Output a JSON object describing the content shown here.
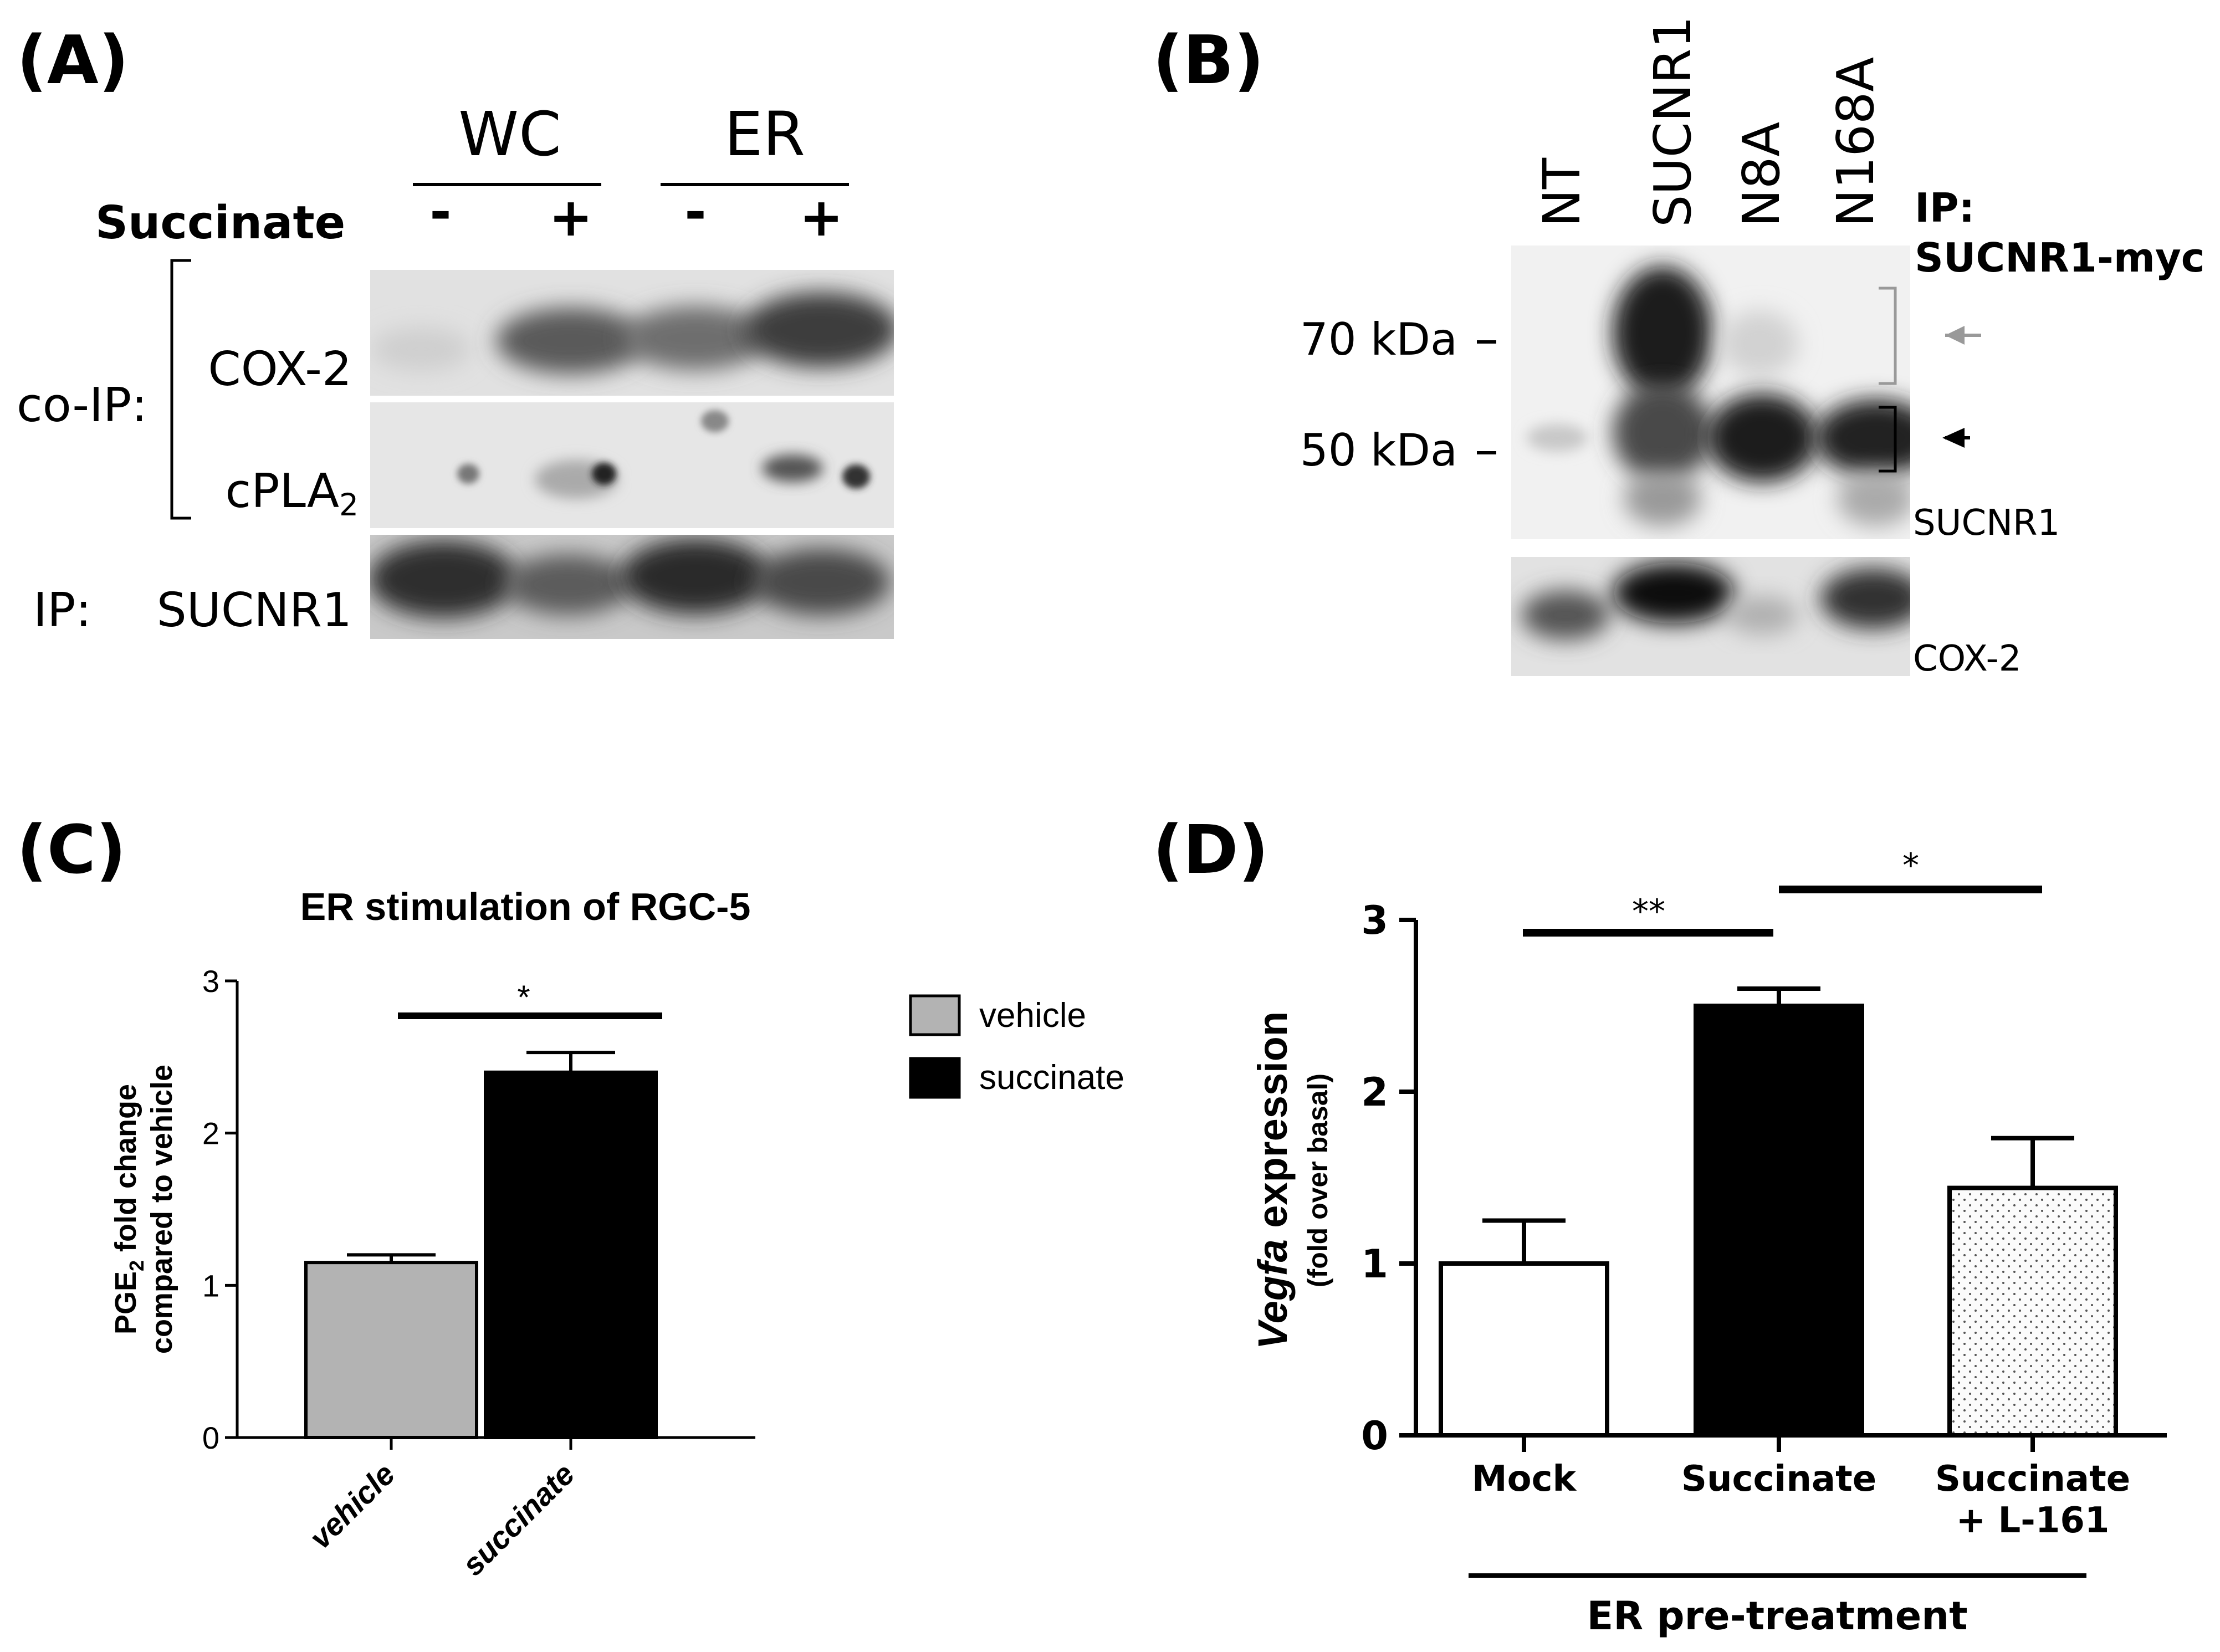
{
  "panel_a": {
    "label": "(A)",
    "group_wc": "WC",
    "group_er": "ER",
    "treatment_label": "Succinate",
    "lane_signs": [
      "-",
      "+",
      "-",
      "+"
    ],
    "coip_label": "co-IP:",
    "blot_cox2": "COX-2",
    "blot_cpla2_main": "cPLA",
    "blot_cpla2_sub": "2",
    "ip_prefix": "IP:",
    "ip_target": "SUCNR1"
  },
  "panel_b": {
    "label": "(B)",
    "lanes": [
      "NT",
      "SUCNR1",
      "N8A",
      "N168A"
    ],
    "ip_line1": "IP:",
    "ip_line2": "SUCNR1-myc",
    "marker_70": "70 kDa",
    "marker_50": "50 kDa",
    "blot_sucnr1": "SUCNR1",
    "blot_cox2": "COX-2",
    "arrow_upper_color": "#999999",
    "arrow_lower_color": "#000000"
  },
  "panel_c": {
    "label": "(C)",
    "significance": "*",
    "ylabel_line1_main": "PGE",
    "ylabel_line1_sub": "2",
    "ylabel_line1_rest": " fold change",
    "ylabel_line2": "compared to vehicle",
    "legend": [
      "vehicle",
      "succinate"
    ]
  },
  "panel_d": {
    "label": "(D)",
    "sig_1": "**",
    "sig_2": "*",
    "ylabel_italic": "Vegfa",
    "ylabel_rest": " expression",
    "ylabel_sub": "(fold over basal)",
    "cat3_line1": "Succinate",
    "cat3_line2": "+ L-161",
    "group_label": "ER pre-treatment"
  },
  "chart_data": [
    {
      "type": "bar",
      "title": "ER stimulation of RGC-5",
      "categories": [
        "vehicle",
        "succinate"
      ],
      "values": [
        1.15,
        2.4
      ],
      "errors": [
        0.05,
        0.13
      ],
      "colors": [
        "#b3b3b3",
        "#000000"
      ],
      "ylim": [
        0,
        3
      ],
      "yticks": [
        0,
        1,
        2,
        3
      ],
      "ylabel": "PGE2 fold change compared to vehicle",
      "legend": "right",
      "grid": false
    },
    {
      "type": "bar",
      "categories": [
        "Mock",
        "Succinate",
        "Succinate + L-161"
      ],
      "values": [
        1.0,
        2.5,
        1.44
      ],
      "errors": [
        0.25,
        0.1,
        0.29
      ],
      "colors": [
        "#ffffff",
        "#000000",
        "#f4f4f4"
      ],
      "ylim": [
        0,
        3
      ],
      "yticks": [
        0,
        1,
        2,
        3
      ],
      "ylabel": "Vegfa expression (fold over basal)",
      "grid": false
    }
  ]
}
